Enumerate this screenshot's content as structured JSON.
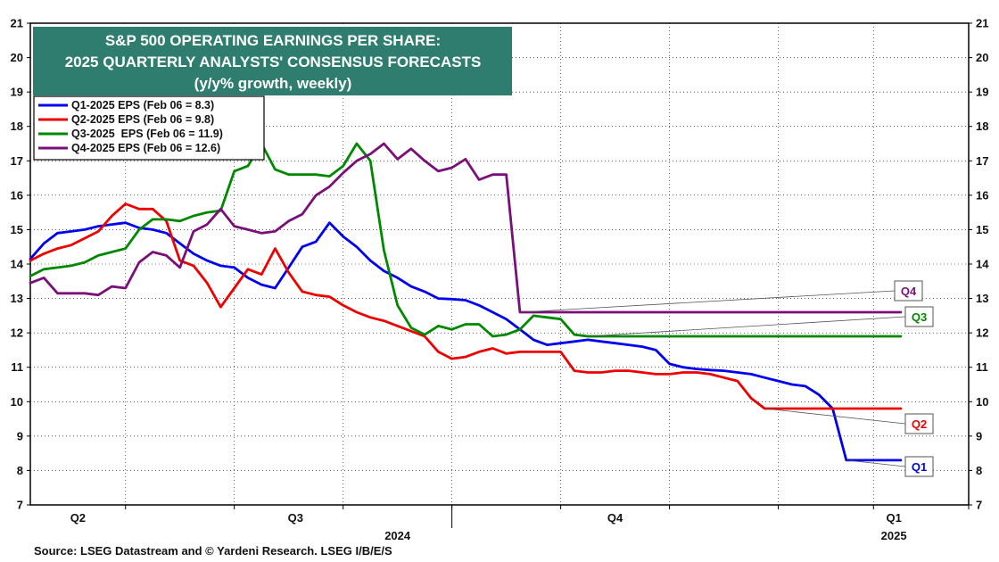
{
  "chart_data": {
    "type": "line",
    "title": [
      "S&P 500 OPERATING EARNINGS PER SHARE:",
      "2025 QUARTERLY ANALYSTS' CONSENSUS FORECASTS",
      "(y/y% growth, weekly)"
    ],
    "ylim": [
      7,
      21
    ],
    "yticks": [
      7,
      8,
      9,
      10,
      11,
      12,
      13,
      14,
      15,
      16,
      17,
      18,
      19,
      20,
      21
    ],
    "x_range": [
      0,
      69
    ],
    "x_tick_labels": [
      {
        "label": "Q2",
        "x": 3.5
      },
      {
        "label": "Q3",
        "x": 19.5
      },
      {
        "label": "Q4",
        "x": 43
      },
      {
        "label": "Q1",
        "x": 63.5
      }
    ],
    "x_year_labels": [
      {
        "label": "2024",
        "x": 27
      },
      {
        "label": "2025",
        "x": 63.5
      }
    ],
    "x_minor_ticks": [
      7,
      15,
      23,
      31,
      39,
      47,
      55,
      62,
      69
    ],
    "x_major_ticks": [
      31
    ],
    "series": [
      {
        "name": "Q1-2025 EPS (Feb 06 = 8.3)",
        "tag": "Q1",
        "color": "#0000ee",
        "x": [
          0,
          1,
          2,
          3,
          4,
          5,
          6,
          7,
          8,
          9,
          10,
          11,
          12,
          13,
          14,
          15,
          16,
          17,
          18,
          19,
          20,
          21,
          22,
          23,
          24,
          25,
          26,
          27,
          28,
          29,
          30,
          31,
          32,
          33,
          34,
          35,
          36,
          37,
          38,
          39,
          40,
          41,
          42,
          43,
          44,
          45,
          46,
          47,
          48,
          49,
          50,
          51,
          52,
          53,
          54,
          55,
          56,
          57,
          58,
          59,
          60,
          61,
          62,
          63,
          64
        ],
        "values": [
          14.15,
          14.6,
          14.9,
          14.95,
          15.0,
          15.1,
          15.15,
          15.2,
          15.05,
          15.0,
          14.9,
          14.6,
          14.3,
          14.1,
          13.95,
          13.9,
          13.6,
          13.4,
          13.3,
          13.9,
          14.5,
          14.65,
          15.2,
          14.8,
          14.5,
          14.1,
          13.8,
          13.6,
          13.35,
          13.2,
          13.0,
          12.98,
          12.95,
          12.8,
          12.6,
          12.4,
          12.1,
          11.8,
          11.65,
          11.7,
          11.75,
          11.8,
          11.75,
          11.7,
          11.65,
          11.6,
          11.5,
          11.1,
          11.0,
          10.95,
          10.92,
          10.9,
          10.85,
          10.8,
          10.7,
          10.6,
          10.5,
          10.45,
          10.2,
          9.8,
          8.3,
          8.3,
          8.3,
          8.3,
          8.3
        ]
      },
      {
        "name": "Q2-2025 EPS (Feb 06 = 9.8)",
        "tag": "Q2",
        "color": "#ee0000",
        "x": [
          0,
          1,
          2,
          3,
          4,
          5,
          6,
          7,
          8,
          9,
          10,
          11,
          12,
          13,
          14,
          15,
          16,
          17,
          18,
          19,
          20,
          21,
          22,
          23,
          24,
          25,
          26,
          27,
          28,
          29,
          30,
          31,
          32,
          33,
          34,
          35,
          36,
          37,
          38,
          39,
          40,
          41,
          42,
          43,
          44,
          45,
          46,
          47,
          48,
          49,
          50,
          51,
          52,
          53,
          54,
          55,
          56,
          57,
          58,
          59,
          60,
          61,
          62,
          63,
          64
        ],
        "values": [
          14.1,
          14.3,
          14.45,
          14.55,
          14.75,
          14.95,
          15.4,
          15.75,
          15.6,
          15.6,
          15.25,
          14.1,
          13.95,
          13.45,
          12.75,
          13.3,
          13.85,
          13.7,
          14.45,
          13.75,
          13.2,
          13.1,
          13.05,
          12.8,
          12.6,
          12.45,
          12.35,
          12.2,
          12.05,
          11.9,
          11.45,
          11.25,
          11.3,
          11.45,
          11.55,
          11.4,
          11.45,
          11.45,
          11.45,
          11.45,
          10.9,
          10.85,
          10.85,
          10.9,
          10.9,
          10.85,
          10.8,
          10.8,
          10.85,
          10.85,
          10.8,
          10.7,
          10.6,
          10.1,
          9.8,
          9.8,
          9.8,
          9.8,
          9.8,
          9.8,
          9.8,
          9.8,
          9.8,
          9.8,
          9.8
        ]
      },
      {
        "name": "Q3-2025  EPS (Feb 06 = 11.9)",
        "tag": "Q3",
        "color": "#008800",
        "x": [
          0,
          1,
          2,
          3,
          4,
          5,
          6,
          7,
          8,
          9,
          10,
          11,
          12,
          13,
          14,
          15,
          16,
          17,
          18,
          19,
          20,
          21,
          22,
          23,
          24,
          25,
          26,
          27,
          28,
          29,
          30,
          31,
          32,
          33,
          34,
          35,
          36,
          37,
          38,
          39,
          40,
          41,
          42,
          43,
          44,
          45,
          46,
          47,
          48,
          49,
          50,
          51,
          52,
          53,
          54,
          55,
          56,
          57,
          58,
          59,
          60,
          61,
          62,
          63,
          64
        ],
        "values": [
          13.65,
          13.85,
          13.9,
          13.95,
          14.05,
          14.25,
          14.35,
          14.45,
          15.0,
          15.3,
          15.3,
          15.25,
          15.4,
          15.5,
          15.55,
          16.7,
          16.85,
          17.5,
          16.75,
          16.6,
          16.6,
          16.6,
          16.55,
          16.85,
          17.5,
          17.0,
          14.4,
          12.8,
          12.15,
          11.95,
          12.2,
          12.1,
          12.25,
          12.25,
          11.9,
          11.95,
          12.1,
          12.5,
          12.45,
          12.4,
          11.95,
          11.9,
          11.9,
          11.9,
          11.9,
          11.9,
          11.9,
          11.9,
          11.9,
          11.9,
          11.9,
          11.9,
          11.9,
          11.9,
          11.9,
          11.9,
          11.9,
          11.9,
          11.9,
          11.9,
          11.9,
          11.9,
          11.9,
          11.9,
          11.9
        ]
      },
      {
        "name": "Q4-2025 EPS (Feb 06 = 12.6)",
        "tag": "Q4",
        "color": "#7a0f7a",
        "x": [
          0,
          1,
          2,
          3,
          4,
          5,
          6,
          7,
          8,
          9,
          10,
          11,
          12,
          13,
          14,
          15,
          16,
          17,
          18,
          19,
          20,
          21,
          22,
          23,
          24,
          25,
          26,
          27,
          28,
          29,
          30,
          31,
          32,
          33,
          34,
          35,
          36,
          37,
          38,
          39,
          40,
          41,
          42,
          43,
          44,
          45,
          46,
          47,
          48,
          49,
          50,
          51,
          52,
          53,
          54,
          55,
          56,
          57,
          58,
          59,
          60,
          61,
          62,
          63,
          64
        ],
        "values": [
          13.45,
          13.6,
          13.15,
          13.15,
          13.15,
          13.1,
          13.35,
          13.3,
          14.05,
          14.35,
          14.25,
          13.9,
          14.95,
          15.15,
          15.6,
          15.1,
          15.0,
          14.9,
          14.95,
          15.25,
          15.45,
          16.0,
          16.25,
          16.65,
          17.0,
          17.2,
          17.5,
          17.05,
          17.35,
          17.0,
          16.7,
          16.8,
          17.05,
          16.45,
          16.6,
          16.6,
          12.6,
          12.6,
          12.6,
          12.6,
          12.6,
          12.6,
          12.6,
          12.6,
          12.6,
          12.6,
          12.6,
          12.6,
          12.6,
          12.6,
          12.6,
          12.6,
          12.6,
          12.6,
          12.6,
          12.6,
          12.6,
          12.6,
          12.6,
          12.6,
          12.6,
          12.6,
          12.6,
          12.6,
          12.6
        ]
      }
    ]
  },
  "source_text": "Source: LSEG Datastream and © Yardeni Research. LSEG I/B/E/S",
  "colors": {
    "title_bg": "#2e7d6e",
    "grid": "#000000"
  }
}
